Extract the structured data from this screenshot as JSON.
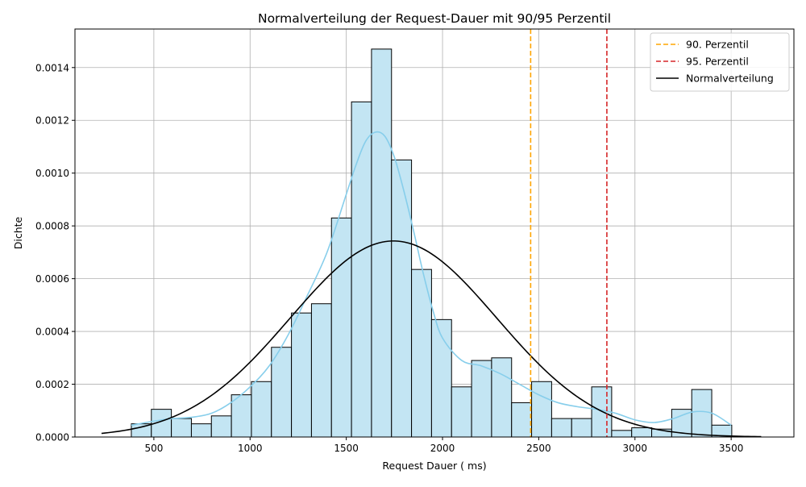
{
  "chart_data": {
    "type": "bar",
    "title": "Normalverteilung der Request-Dauer mit 90/95 Perzentil",
    "xlabel": "Request Dauer ( ms)",
    "ylabel": "Dichte",
    "xlim": [
      90,
      3826
    ],
    "ylim": [
      0,
      0.001546
    ],
    "xticks": [
      500,
      1000,
      1500,
      2000,
      2500,
      3000,
      3500
    ],
    "yticks": [
      0.0,
      0.0002,
      0.0004,
      0.0006,
      0.0008,
      0.001,
      0.0012,
      0.0014
    ],
    "ytick_labels": [
      "0.0000",
      "0.0002",
      "0.0004",
      "0.0006",
      "0.0008",
      "0.0010",
      "0.0012",
      "0.0014"
    ],
    "grid": true,
    "legend_position": "top-right",
    "colors": {
      "bar_fill": "#c3e5f3",
      "bar_edge": "#000000",
      "kde": "#87ceeb",
      "normal": "#000000",
      "p90": "#ffa500",
      "p95": "#d62728",
      "grid": "#b0b0b0"
    },
    "histogram": {
      "bin_start": 383,
      "bin_width": 104,
      "densities": [
        5e-05,
        0.000105,
        7e-05,
        5e-05,
        8e-05,
        0.00016,
        0.00021,
        0.00034,
        0.00047,
        0.000505,
        0.00083,
        0.00127,
        0.00147,
        0.00105,
        0.000635,
        0.000445,
        0.00019,
        0.00029,
        0.0003,
        0.00013,
        0.00021,
        7e-05,
        7e-05,
        0.00019,
        2.5e-05,
        3.5e-05,
        3e-05,
        0.000105,
        0.00018,
        4.5e-05
      ]
    },
    "kde_curve": {
      "x": [
        383,
        500,
        600,
        700,
        800,
        900,
        1000,
        1100,
        1200,
        1300,
        1400,
        1500,
        1550,
        1600,
        1650,
        1700,
        1750,
        1800,
        1850,
        1900,
        1950,
        2000,
        2100,
        2200,
        2300,
        2400,
        2500,
        2600,
        2700,
        2800,
        2900,
        3000,
        3100,
        3200,
        3300,
        3400,
        3500
      ],
      "y": [
        4.5e-05,
        6e-05,
        7e-05,
        7.5e-05,
        9e-05,
        0.00013,
        0.00019,
        0.00027,
        0.00039,
        0.00054,
        0.0007,
        0.00092,
        0.00103,
        0.00112,
        0.001155,
        0.00114,
        0.00106,
        0.00093,
        0.00078,
        0.00062,
        0.00048,
        0.000375,
        0.00029,
        0.00027,
        0.00024,
        0.0002,
        0.00016,
        0.00013,
        0.000115,
        0.000105,
        9e-05,
        6.5e-05,
        5.5e-05,
        7e-05,
        9.5e-05,
        9e-05,
        4.5e-05
      ]
    },
    "normal_curve": {
      "mean": 1745,
      "std": 537,
      "x_range": [
        228,
        3656
      ]
    },
    "percentiles": [
      {
        "name": "90. Perzentil",
        "value": 2458,
        "color": "#ffa500"
      },
      {
        "name": "95. Perzentil",
        "value": 2854,
        "color": "#d62728"
      }
    ],
    "legend": [
      "90. Perzentil",
      "95. Perzentil",
      "Normalverteilung"
    ]
  }
}
